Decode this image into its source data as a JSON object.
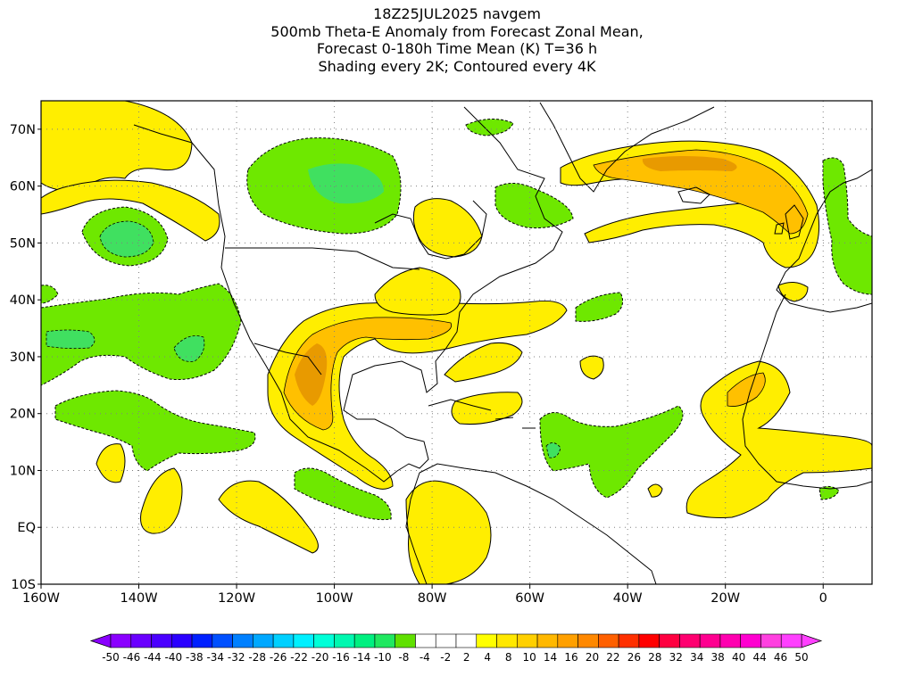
{
  "title_lines": [
    "18Z25JUL2025 navgem",
    "500mb Theta-E Anomaly from Forecast Zonal Mean,",
    "Forecast 0-180h Time Mean (K) T=36 h",
    "Shading every 2K; Contoured every 4K"
  ],
  "map": {
    "lon_range": [
      -160,
      10
    ],
    "lat_range": [
      -10,
      75
    ],
    "lon_ticks": [
      {
        "value": -160,
        "label": "160W"
      },
      {
        "value": -140,
        "label": "140W"
      },
      {
        "value": -120,
        "label": "120W"
      },
      {
        "value": -100,
        "label": "100W"
      },
      {
        "value": -80,
        "label": "80W"
      },
      {
        "value": -60,
        "label": "60W"
      },
      {
        "value": -40,
        "label": "40W"
      },
      {
        "value": -20,
        "label": "20W"
      },
      {
        "value": 0,
        "label": "0"
      }
    ],
    "lat_ticks": [
      {
        "value": 70,
        "label": "70N"
      },
      {
        "value": 60,
        "label": "60N"
      },
      {
        "value": 50,
        "label": "50N"
      },
      {
        "value": 40,
        "label": "40N"
      },
      {
        "value": 30,
        "label": "30N"
      },
      {
        "value": 20,
        "label": "20N"
      },
      {
        "value": 10,
        "label": "10N"
      },
      {
        "value": 0,
        "label": "EQ"
      },
      {
        "value": -10,
        "label": "10S"
      }
    ],
    "grid_lines": "dotted",
    "colors": {
      "land_outline": "#000000",
      "grid": "#808080",
      "positive_light": "#ffee00",
      "positive_mid": "#ffc000",
      "positive_strong": "#e89a00",
      "negative_light": "#6ee800",
      "negative_mid": "#40e060",
      "negative_strong": "#20e8a0"
    }
  },
  "colorbar": {
    "labels": [
      "-50",
      "-46",
      "-44",
      "-40",
      "-38",
      "-34",
      "-32",
      "-28",
      "-26",
      "-22",
      "-20",
      "-16",
      "-14",
      "-10",
      "-8",
      "-4",
      "-2",
      "2",
      "4",
      "8",
      "10",
      "14",
      "16",
      "20",
      "22",
      "26",
      "28",
      "32",
      "34",
      "38",
      "40",
      "44",
      "46",
      "50"
    ],
    "colors": [
      "#8a00ff",
      "#6a00ff",
      "#4a00ff",
      "#2a00ff",
      "#0020ff",
      "#0050ff",
      "#0080ff",
      "#00a8ff",
      "#00d0ff",
      "#00f0ff",
      "#00ffd8",
      "#00f8b0",
      "#00f080",
      "#20e860",
      "#60e000",
      "#ffffff",
      "#ffffff",
      "#ffffff",
      "#ffff00",
      "#ffe800",
      "#ffd000",
      "#ffb800",
      "#ffa000",
      "#ff8800",
      "#ff6000",
      "#ff3000",
      "#ff0000",
      "#ff0040",
      "#ff0070",
      "#ff0090",
      "#ff00b0",
      "#ff00d0",
      "#ff40e0",
      "#ff40ff"
    ]
  }
}
